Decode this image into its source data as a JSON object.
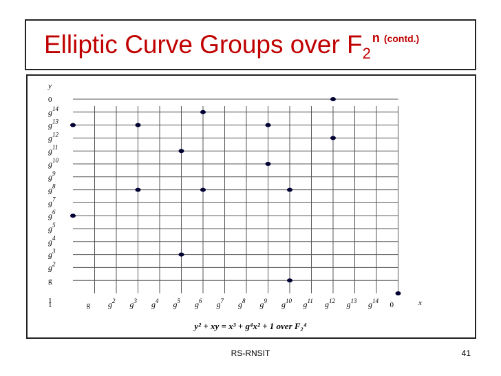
{
  "slide": {
    "title_main": "Elliptic Curve Groups over F",
    "title_sub": "2",
    "title_sup": "n",
    "title_contd": "(contd.)",
    "footer": "RS-RNSIT",
    "page_number": "41"
  },
  "chart_data": {
    "type": "scatter",
    "title": "",
    "caption": "y² + xy = x³ + g⁴x² + 1  over  F₂⁴",
    "xlabel": "x",
    "ylabel": "y",
    "grid": true,
    "x_categories": [
      "1",
      "g",
      "g2",
      "g3",
      "g4",
      "g5",
      "g6",
      "g7",
      "g8",
      "g9",
      "g10",
      "g11",
      "g12",
      "g13",
      "g14",
      "0"
    ],
    "y_categories": [
      "1",
      "g",
      "g2",
      "g3",
      "g4",
      "g5",
      "g6",
      "g7",
      "g8",
      "g9",
      "g10",
      "g11",
      "g12",
      "g13",
      "g14",
      "0"
    ],
    "x_tick_labels": [
      {
        "base": "1",
        "exp": ""
      },
      {
        "base": "g",
        "exp": ""
      },
      {
        "base": "g",
        "exp": "2"
      },
      {
        "base": "g",
        "exp": "3"
      },
      {
        "base": "g",
        "exp": "4"
      },
      {
        "base": "g",
        "exp": "5"
      },
      {
        "base": "g",
        "exp": "6"
      },
      {
        "base": "g",
        "exp": "7"
      },
      {
        "base": "g",
        "exp": "8"
      },
      {
        "base": "g",
        "exp": "9"
      },
      {
        "base": "g",
        "exp": "10"
      },
      {
        "base": "g",
        "exp": "11"
      },
      {
        "base": "g",
        "exp": "12"
      },
      {
        "base": "g",
        "exp": "13"
      },
      {
        "base": "g",
        "exp": "14"
      },
      {
        "base": "0",
        "exp": ""
      }
    ],
    "y_tick_labels": [
      {
        "base": "1",
        "exp": ""
      },
      {
        "base": "g",
        "exp": ""
      },
      {
        "base": "g",
        "exp": "2"
      },
      {
        "base": "g",
        "exp": "3"
      },
      {
        "base": "g",
        "exp": "4"
      },
      {
        "base": "g",
        "exp": "5"
      },
      {
        "base": "g",
        "exp": "6"
      },
      {
        "base": "g",
        "exp": "7"
      },
      {
        "base": "g",
        "exp": "8"
      },
      {
        "base": "g",
        "exp": "9"
      },
      {
        "base": "g",
        "exp": "10"
      },
      {
        "base": "g",
        "exp": "11"
      },
      {
        "base": "g",
        "exp": "12"
      },
      {
        "base": "g",
        "exp": "13"
      },
      {
        "base": "g",
        "exp": "14"
      },
      {
        "base": "0",
        "exp": ""
      }
    ],
    "points": [
      {
        "x": "1",
        "y": "g13"
      },
      {
        "x": "1",
        "y": "g6"
      },
      {
        "x": "g3",
        "y": "g13"
      },
      {
        "x": "g3",
        "y": "g8"
      },
      {
        "x": "g5",
        "y": "g11"
      },
      {
        "x": "g5",
        "y": "g3"
      },
      {
        "x": "g6",
        "y": "g14"
      },
      {
        "x": "g6",
        "y": "g8"
      },
      {
        "x": "g9",
        "y": "g13"
      },
      {
        "x": "g9",
        "y": "g10"
      },
      {
        "x": "g10",
        "y": "g8"
      },
      {
        "x": "g10",
        "y": "g"
      },
      {
        "x": "g12",
        "y": "0"
      },
      {
        "x": "g12",
        "y": "g12"
      },
      {
        "x": "0",
        "y": "1"
      }
    ]
  },
  "colors": {
    "title": "#c00000",
    "grid": "#555555",
    "point": "#000033"
  }
}
